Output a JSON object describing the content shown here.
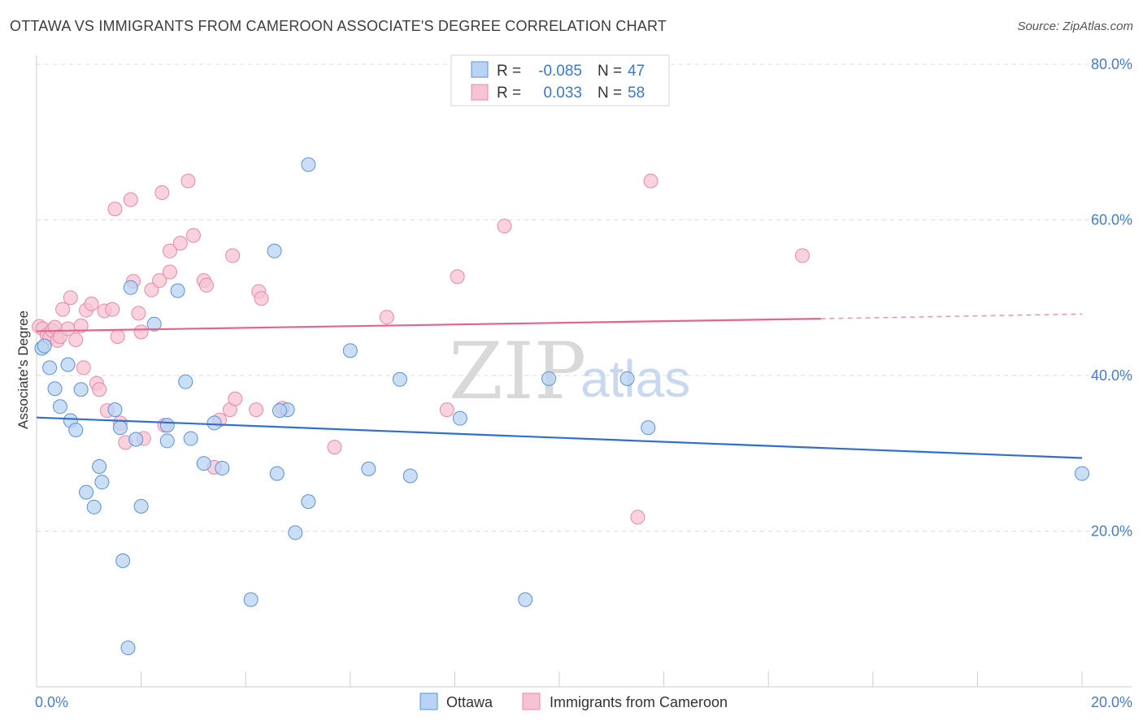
{
  "title": "OTTAWA VS IMMIGRANTS FROM CAMEROON ASSOCIATE'S DEGREE CORRELATION CHART",
  "source": "Source: ZipAtlas.com",
  "watermark": {
    "zip": "ZIP",
    "atlas": "atlas"
  },
  "colors": {
    "ottawa_fill": "#b8d3f3",
    "ottawa_stroke": "#5a92d8",
    "ottawa_line": "#2f6fcf",
    "cameroon_fill": "#f7c3d3",
    "cameroon_stroke": "#e58aa9",
    "cameroon_line": "#e4648e",
    "axis_text": "#4a7bc8",
    "grid": "#dddddd"
  },
  "legend": {
    "rows": [
      {
        "r_label": "R =",
        "r_value": "-0.085",
        "n_label": "N =",
        "n_value": "47"
      },
      {
        "r_label": "R =",
        "r_value": "0.033",
        "n_label": "N =",
        "n_value": "58"
      }
    ]
  },
  "bottom_legend": [
    "Ottawa",
    "Immigrants from Cameroon"
  ],
  "chart_data": {
    "type": "scatter",
    "title": "OTTAWA VS IMMIGRANTS FROM CAMEROON ASSOCIATE'S DEGREE CORRELATION CHART",
    "xlabel": "",
    "ylabel": "Associate's Degree",
    "xlim": [
      0,
      20
    ],
    "ylim": [
      0,
      80
    ],
    "x_tick_labels": [
      "0.0%",
      "20.0%"
    ],
    "y_tick_labels": [
      "20.0%",
      "40.0%",
      "60.0%",
      "80.0%"
    ],
    "y_ticks": [
      20,
      40,
      60,
      80
    ],
    "grid": true,
    "legend_position": "top-center",
    "series": [
      {
        "name": "Ottawa",
        "r": -0.085,
        "n": 47,
        "trend": {
          "x": [
            0,
            20
          ],
          "y": [
            34.6,
            29.4
          ],
          "dashed_from": null
        },
        "points": [
          [
            0.1,
            43.5
          ],
          [
            0.15,
            43.8
          ],
          [
            0.25,
            41.0
          ],
          [
            0.35,
            38.3
          ],
          [
            0.45,
            36.0
          ],
          [
            0.65,
            34.2
          ],
          [
            0.75,
            33.0
          ],
          [
            0.85,
            38.2
          ],
          [
            0.6,
            41.4
          ],
          [
            0.95,
            25.0
          ],
          [
            1.1,
            23.1
          ],
          [
            1.2,
            28.3
          ],
          [
            1.25,
            26.3
          ],
          [
            1.5,
            35.6
          ],
          [
            1.6,
            33.3
          ],
          [
            1.65,
            16.2
          ],
          [
            1.75,
            5.0
          ],
          [
            1.8,
            51.3
          ],
          [
            1.9,
            31.8
          ],
          [
            2.0,
            23.2
          ],
          [
            2.25,
            46.6
          ],
          [
            2.5,
            33.6
          ],
          [
            2.5,
            31.6
          ],
          [
            2.7,
            50.9
          ],
          [
            2.85,
            39.2
          ],
          [
            2.95,
            31.9
          ],
          [
            3.2,
            28.7
          ],
          [
            3.4,
            33.9
          ],
          [
            3.55,
            28.1
          ],
          [
            4.55,
            56.0
          ],
          [
            4.6,
            27.4
          ],
          [
            4.8,
            35.6
          ],
          [
            4.95,
            19.8
          ],
          [
            5.2,
            67.1
          ],
          [
            5.2,
            23.8
          ],
          [
            4.1,
            11.2
          ],
          [
            6.0,
            43.2
          ],
          [
            6.35,
            28.0
          ],
          [
            6.95,
            39.5
          ],
          [
            7.15,
            27.1
          ],
          [
            8.1,
            34.5
          ],
          [
            9.35,
            11.2
          ],
          [
            9.8,
            39.6
          ],
          [
            11.3,
            39.6
          ],
          [
            11.7,
            33.3
          ],
          [
            20.0,
            27.4
          ],
          [
            4.65,
            35.5
          ]
        ]
      },
      {
        "name": "Immigrants from Cameroon",
        "r": 0.033,
        "n": 58,
        "trend": {
          "x": [
            0,
            15
          ],
          "y": [
            45.7,
            47.3
          ],
          "dashed_to": [
            20,
            47.9
          ]
        },
        "points": [
          [
            0.05,
            46.3
          ],
          [
            0.12,
            46.0
          ],
          [
            0.2,
            45.2
          ],
          [
            0.25,
            44.9
          ],
          [
            0.3,
            45.8
          ],
          [
            0.35,
            46.2
          ],
          [
            0.4,
            44.5
          ],
          [
            0.45,
            45.0
          ],
          [
            0.5,
            48.5
          ],
          [
            0.6,
            46.0
          ],
          [
            0.65,
            50.0
          ],
          [
            0.75,
            44.6
          ],
          [
            0.85,
            46.4
          ],
          [
            0.9,
            41.0
          ],
          [
            0.95,
            48.4
          ],
          [
            1.05,
            49.2
          ],
          [
            1.15,
            39.0
          ],
          [
            1.2,
            38.2
          ],
          [
            1.3,
            48.3
          ],
          [
            1.45,
            48.5
          ],
          [
            1.35,
            35.5
          ],
          [
            1.55,
            45.0
          ],
          [
            1.6,
            33.9
          ],
          [
            1.7,
            31.4
          ],
          [
            1.5,
            61.4
          ],
          [
            1.8,
            62.6
          ],
          [
            1.85,
            52.1
          ],
          [
            1.95,
            48.0
          ],
          [
            2.0,
            45.6
          ],
          [
            2.05,
            31.9
          ],
          [
            2.2,
            51.0
          ],
          [
            2.35,
            52.2
          ],
          [
            2.4,
            63.5
          ],
          [
            2.45,
            33.6
          ],
          [
            2.55,
            56.0
          ],
          [
            2.55,
            53.3
          ],
          [
            2.75,
            57.0
          ],
          [
            2.9,
            65.0
          ],
          [
            3.0,
            58.0
          ],
          [
            3.2,
            52.2
          ],
          [
            3.25,
            51.6
          ],
          [
            3.4,
            28.2
          ],
          [
            3.5,
            34.3
          ],
          [
            3.7,
            35.6
          ],
          [
            3.75,
            55.4
          ],
          [
            3.8,
            37.0
          ],
          [
            4.2,
            35.6
          ],
          [
            4.25,
            50.8
          ],
          [
            4.3,
            49.9
          ],
          [
            4.7,
            35.8
          ],
          [
            5.7,
            30.8
          ],
          [
            6.7,
            47.5
          ],
          [
            7.85,
            35.6
          ],
          [
            8.05,
            52.7
          ],
          [
            8.95,
            59.2
          ],
          [
            11.5,
            21.8
          ],
          [
            11.75,
            65.0
          ],
          [
            14.65,
            55.4
          ]
        ]
      }
    ]
  }
}
